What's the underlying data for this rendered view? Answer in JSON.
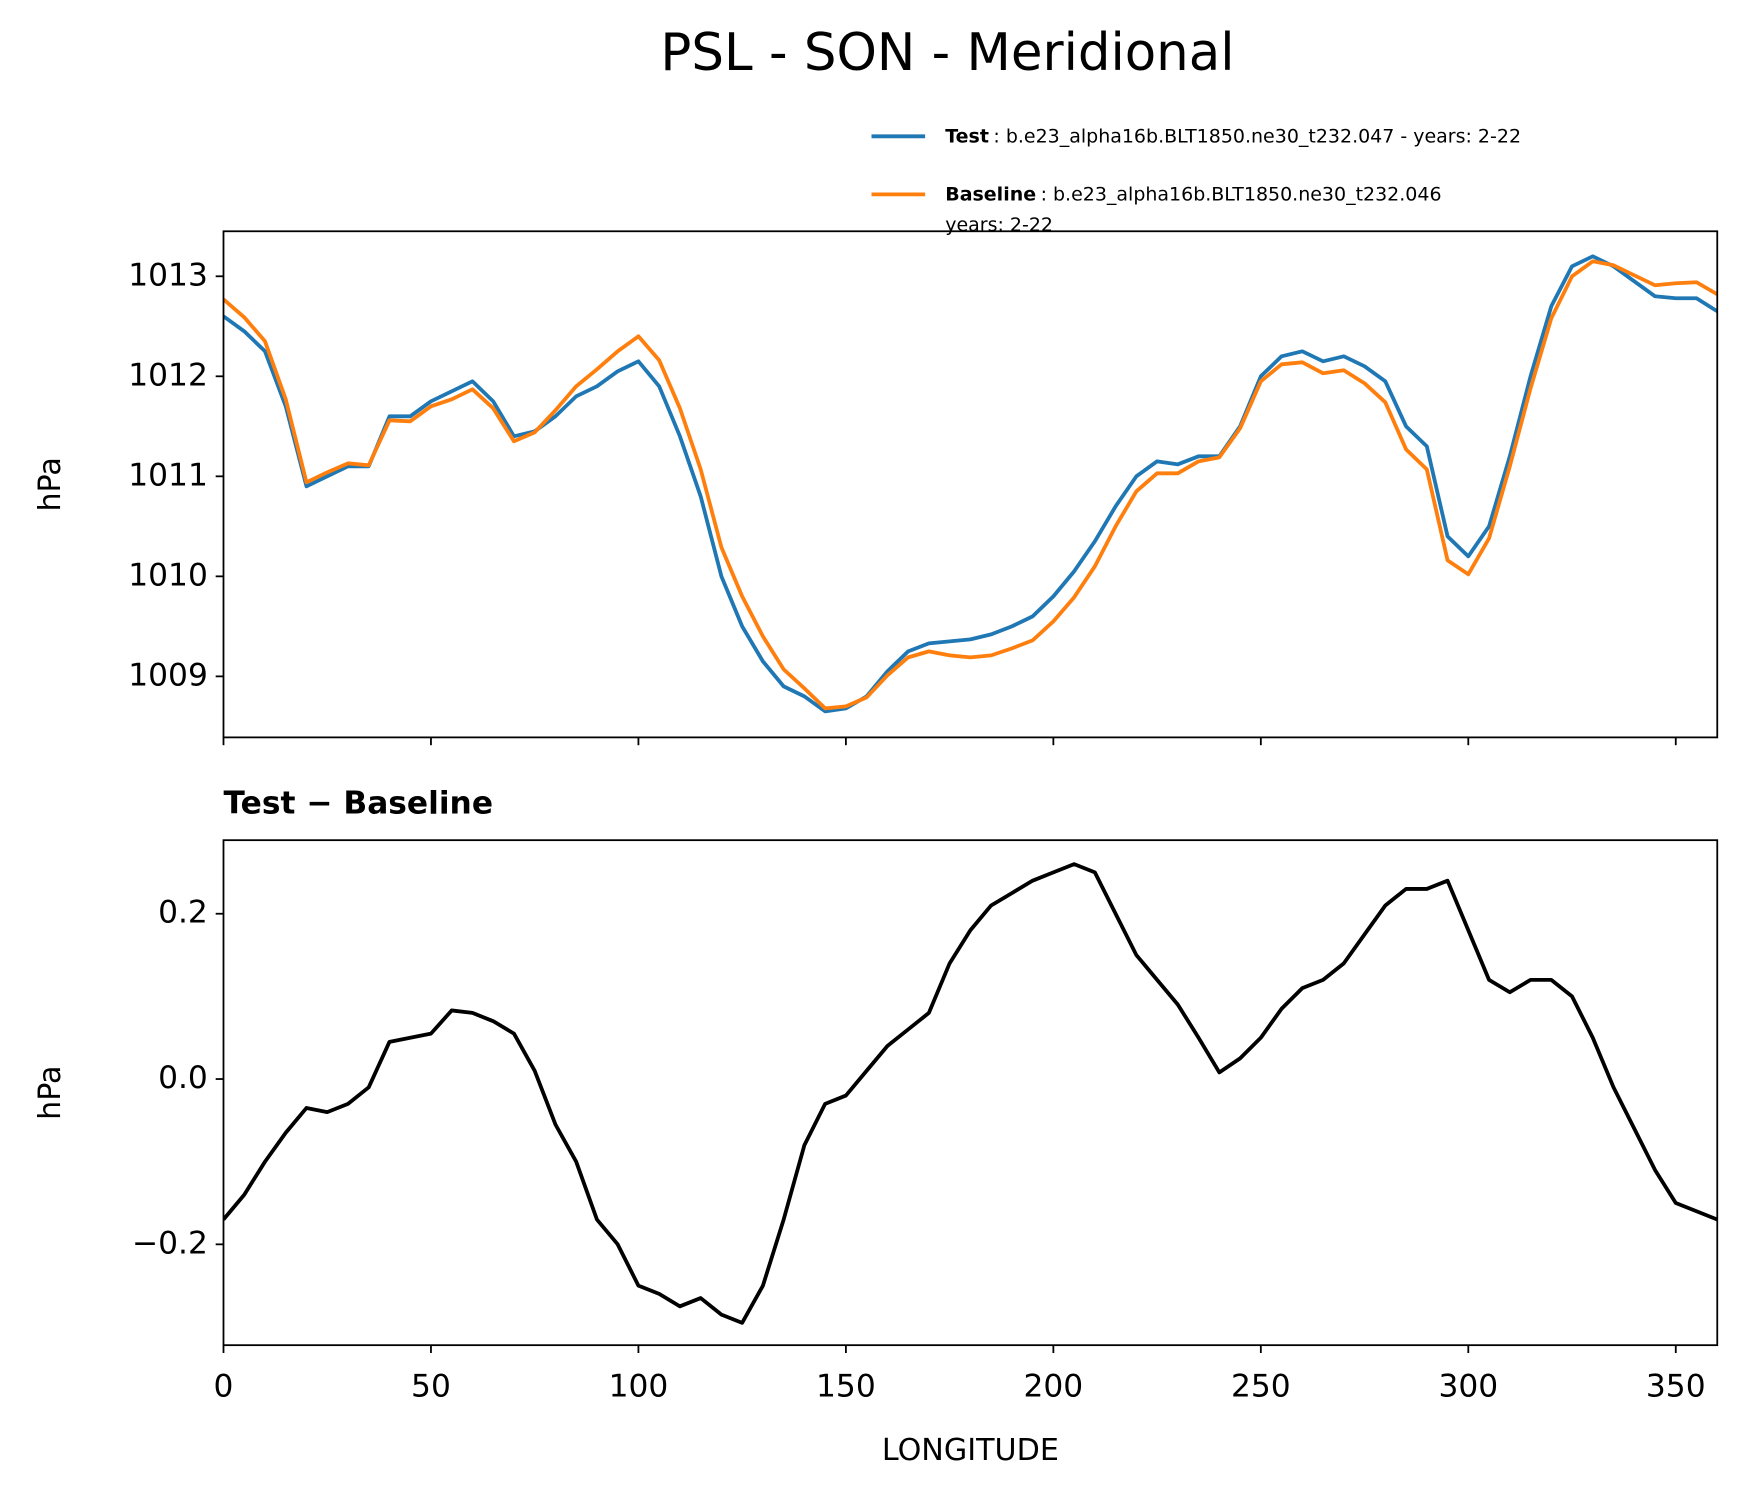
{
  "chart_data": [
    {
      "type": "line",
      "title": "PSL - SON - Meridional",
      "ylabel": "hPa",
      "x": [
        0,
        5,
        10,
        15,
        20,
        25,
        30,
        35,
        40,
        45,
        50,
        55,
        60,
        65,
        70,
        75,
        80,
        85,
        90,
        95,
        100,
        105,
        110,
        115,
        120,
        125,
        130,
        135,
        140,
        145,
        150,
        155,
        160,
        165,
        170,
        175,
        180,
        185,
        190,
        195,
        200,
        205,
        210,
        215,
        220,
        225,
        230,
        235,
        240,
        245,
        250,
        255,
        260,
        265,
        270,
        275,
        280,
        285,
        290,
        295,
        300,
        305,
        310,
        315,
        320,
        325,
        330,
        335,
        340,
        345,
        350,
        355,
        360
      ],
      "xlim": [
        0,
        360
      ],
      "xticks": [
        0,
        50,
        100,
        150,
        200,
        250,
        300,
        350
      ],
      "xtick_labels": false,
      "ylim": [
        1008.39,
        1013.45
      ],
      "yticks": [
        1009,
        1010,
        1011,
        1012,
        1013
      ],
      "series": [
        {
          "name": "Test",
          "description": [
            ": b.e23_alpha16b.BLT1850.ne30_t232.047 - years: 2-22"
          ],
          "color": "#1f77b4",
          "values": [
            1012.6,
            1012.45,
            1012.25,
            1011.7,
            1010.9,
            1011.0,
            1011.1,
            1011.1,
            1011.6,
            1011.6,
            1011.75,
            1011.85,
            1011.95,
            1011.75,
            1011.4,
            1011.45,
            1011.6,
            1011.8,
            1011.9,
            1012.05,
            1012.15,
            1011.9,
            1011.4,
            1010.8,
            1010.0,
            1009.5,
            1009.15,
            1008.9,
            1008.8,
            1008.65,
            1008.68,
            1008.8,
            1009.05,
            1009.25,
            1009.33,
            1009.35,
            1009.37,
            1009.42,
            1009.5,
            1009.6,
            1009.8,
            1010.05,
            1010.35,
            1010.7,
            1011.0,
            1011.15,
            1011.12,
            1011.2,
            1011.2,
            1011.5,
            1012.0,
            1012.2,
            1012.25,
            1012.15,
            1012.2,
            1012.1,
            1011.95,
            1011.5,
            1011.3,
            1010.4,
            1010.2,
            1010.5,
            1011.2,
            1012.0,
            1012.7,
            1013.1,
            1013.2,
            1013.1,
            1012.95,
            1012.8,
            1012.78,
            1012.78,
            1012.65
          ]
        },
        {
          "name": "Baseline",
          "description": [
            ": b.e23_alpha16b.BLT1850.ne30_t232.046",
            "years: 2-22"
          ],
          "color": "#ff7f0e",
          "values": [
            1012.77,
            1012.59,
            1012.35,
            1011.77,
            1010.94,
            1011.04,
            1011.13,
            1011.11,
            1011.56,
            1011.55,
            1011.7,
            1011.77,
            1011.87,
            1011.68,
            1011.35,
            1011.44,
            1011.66,
            1011.9,
            1012.07,
            1012.25,
            1012.4,
            1012.16,
            1011.68,
            1011.07,
            1010.29,
            1009.8,
            1009.4,
            1009.07,
            1008.88,
            1008.68,
            1008.7,
            1008.79,
            1009.01,
            1009.19,
            1009.25,
            1009.21,
            1009.19,
            1009.21,
            1009.28,
            1009.36,
            1009.55,
            1009.79,
            1010.1,
            1010.5,
            1010.85,
            1011.03,
            1011.03,
            1011.15,
            1011.19,
            1011.48,
            1011.95,
            1012.12,
            1012.14,
            1012.03,
            1012.06,
            1011.93,
            1011.74,
            1011.27,
            1011.07,
            1010.16,
            1010.02,
            1010.38,
            1011.1,
            1011.88,
            1012.58,
            1013.0,
            1013.15,
            1013.11,
            1013.01,
            1012.91,
            1012.93,
            1012.94,
            1012.82
          ]
        }
      ]
    },
    {
      "type": "line",
      "title": "Test − Baseline",
      "ylabel": "hPa",
      "xlabel": "LONGITUDE",
      "x": [
        0,
        5,
        10,
        15,
        20,
        25,
        30,
        35,
        40,
        45,
        50,
        55,
        60,
        65,
        70,
        75,
        80,
        85,
        90,
        95,
        100,
        105,
        110,
        115,
        120,
        125,
        130,
        135,
        140,
        145,
        150,
        155,
        160,
        165,
        170,
        175,
        180,
        185,
        190,
        195,
        200,
        205,
        210,
        215,
        220,
        225,
        230,
        235,
        240,
        245,
        250,
        255,
        260,
        265,
        270,
        275,
        280,
        285,
        290,
        295,
        300,
        305,
        310,
        315,
        320,
        325,
        330,
        335,
        340,
        345,
        350,
        355,
        360
      ],
      "xlim": [
        0,
        360
      ],
      "xticks": [
        0,
        50,
        100,
        150,
        200,
        250,
        300,
        350
      ],
      "ylim": [
        -0.322,
        0.289
      ],
      "yticks": [
        {
          "value": -0.2,
          "label": "−0.2"
        },
        {
          "value": 0,
          "label": "0.0"
        },
        0.2
      ],
      "series": [
        {
          "color": "#000000",
          "values": [
            -0.17,
            -0.14,
            -0.1,
            -0.065,
            -0.035,
            -0.04,
            -0.03,
            -0.01,
            0.045,
            0.05,
            0.055,
            0.083,
            0.08,
            0.07,
            0.055,
            0.01,
            -0.055,
            -0.1,
            -0.17,
            -0.2,
            -0.25,
            -0.26,
            -0.275,
            -0.265,
            -0.285,
            -0.295,
            -0.25,
            -0.17,
            -0.08,
            -0.03,
            -0.02,
            0.01,
            0.04,
            0.06,
            0.08,
            0.14,
            0.18,
            0.21,
            0.225,
            0.24,
            0.25,
            0.26,
            0.25,
            0.2,
            0.15,
            0.12,
            0.09,
            0.05,
            0.008,
            0.025,
            0.05,
            0.085,
            0.11,
            0.12,
            0.14,
            0.175,
            0.21,
            0.23,
            0.23,
            0.24,
            0.18,
            0.12,
            0.105,
            0.12,
            0.12,
            0.1,
            0.05,
            -0.01,
            -0.06,
            -0.11,
            -0.15,
            -0.16,
            -0.17
          ]
        }
      ]
    }
  ]
}
